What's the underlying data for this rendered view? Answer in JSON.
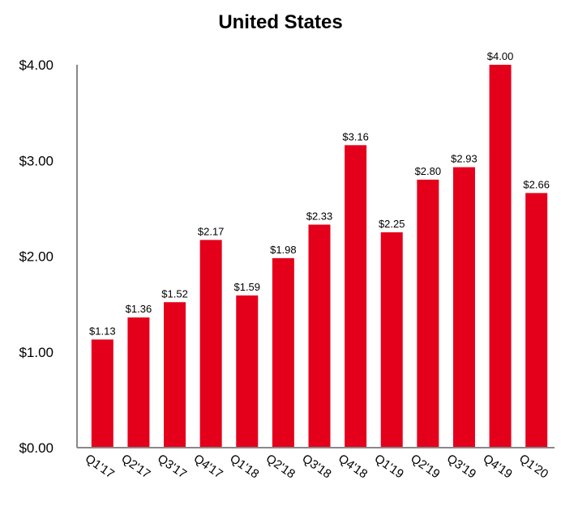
{
  "chart_data": {
    "type": "bar",
    "title": "United States",
    "xlabel": "",
    "ylabel": "",
    "categories": [
      "Q1'17",
      "Q2'17",
      "Q3'17",
      "Q4'17",
      "Q1'18",
      "Q2'18",
      "Q3'18",
      "Q4'18",
      "Q1'19",
      "Q2'19",
      "Q3'19",
      "Q4'19",
      "Q1'20"
    ],
    "values": [
      1.13,
      1.36,
      1.52,
      2.17,
      1.59,
      1.98,
      2.33,
      3.16,
      2.25,
      2.8,
      2.93,
      4.0,
      2.66
    ],
    "data_labels": [
      "$1.13",
      "$1.36",
      "$1.52",
      "$2.17",
      "$1.59",
      "$1.98",
      "$2.33",
      "$3.16",
      "$2.25",
      "$2.80",
      "$2.93",
      "$4.00",
      "$2.66"
    ],
    "y_ticks": [
      0,
      1,
      2,
      3,
      4
    ],
    "y_tick_labels": [
      "$0.00",
      "$1.00",
      "$2.00",
      "$3.00",
      "$4.00"
    ],
    "ylim": [
      0,
      4
    ],
    "grid": false,
    "legend": "none",
    "bar_color": "#e4001b",
    "axis_color": "#888888"
  }
}
